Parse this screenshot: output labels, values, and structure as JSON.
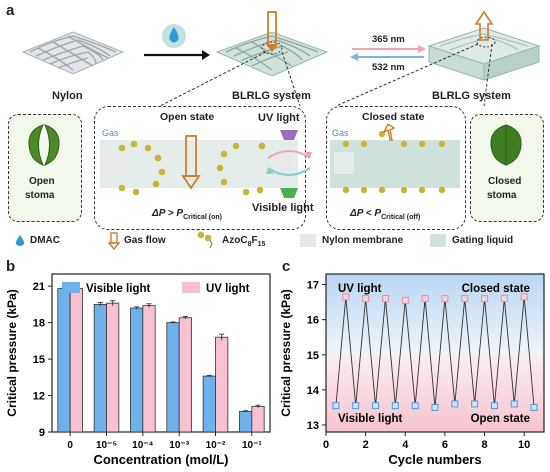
{
  "panel_a": {
    "letter": "a",
    "nylon_label": "Nylon",
    "blrlg1_label": "BLRLG system",
    "blrlg2_label": "BLRLG system",
    "wl_365": "365 nm",
    "wl_532": "532 nm",
    "open_state": "Open state",
    "closed_state": "Closed state",
    "gas_open": "Gas",
    "gas_closed": "Gas",
    "uv_light": "UV light",
    "visible_light": "Visible light",
    "open_stoma": [
      "Open",
      "stoma"
    ],
    "closed_stoma": [
      "Closed",
      "stoma"
    ],
    "dp_open": "ΔP > P",
    "dp_open_sub": "Critical (on)",
    "dp_closed": "ΔP < P",
    "dp_closed_sub": "Critical (off)",
    "legend": {
      "dmac": "DMAC",
      "gas_flow": "Gas flow",
      "azo": "AzoC",
      "azo_sub1": "8",
      "azo_mid": "F",
      "azo_sub2": "15",
      "nylon_membrane": "Nylon membrane",
      "gating_liquid": "Gating liquid"
    },
    "colors": {
      "mesh": "#cfd3d8",
      "gating": "#cfe3dc",
      "stoma": "#4f8a2a",
      "azo": "#c8b43a",
      "arrow_gas": "#d47a2a",
      "pink": "#f3a2b8",
      "blue": "#7fb3e6"
    }
  },
  "chart_data": [
    {
      "panel": "b",
      "type": "bar",
      "ylabel": "Critical pressure (kPa)",
      "xlabel": "Concentration (mol/L)",
      "categories": [
        "0",
        "10⁻⁵",
        "10⁻⁴",
        "10⁻³",
        "10⁻²",
        "10⁻¹"
      ],
      "ylim": [
        9,
        22
      ],
      "yticks": [
        9,
        12,
        15,
        18,
        21
      ],
      "series": [
        {
          "name": "Visible light",
          "color": "#6fb1ea",
          "values": [
            20.8,
            19.5,
            19.2,
            18.0,
            13.6,
            10.7
          ],
          "errors": [
            0.05,
            0.15,
            0.1,
            0.05,
            0.05,
            0.05
          ]
        },
        {
          "name": "UV light",
          "color": "#f7c1d2",
          "values": [
            20.8,
            19.6,
            19.4,
            18.4,
            16.8,
            11.1
          ],
          "errors": [
            0.05,
            0.2,
            0.15,
            0.1,
            0.25,
            0.1
          ]
        }
      ],
      "legend_position": "top"
    },
    {
      "panel": "c",
      "type": "line",
      "ylabel": "Critical pressure (kPa)",
      "xlabel": "Cycle numbers",
      "xlim": [
        0,
        11
      ],
      "ylim": [
        12.8,
        17.3
      ],
      "xticks": [
        0,
        2,
        4,
        6,
        8,
        10
      ],
      "yticks": [
        13,
        14,
        15,
        16,
        17
      ],
      "x": [
        0.5,
        1,
        1.5,
        2,
        2.5,
        3,
        3.5,
        4,
        4.5,
        5,
        5.5,
        6,
        6.5,
        7,
        7.5,
        8,
        8.5,
        9,
        9.5,
        10,
        10.5
      ],
      "y": [
        13.55,
        16.65,
        13.55,
        16.6,
        13.55,
        16.6,
        13.55,
        16.55,
        13.55,
        16.6,
        13.5,
        16.6,
        13.6,
        16.6,
        13.6,
        16.6,
        13.55,
        16.6,
        13.6,
        16.65,
        13.5
      ],
      "annotations": {
        "uv_light": "UV light",
        "closed_state": "Closed state",
        "visible_light": "Visible light",
        "open_state": "Open state"
      }
    }
  ],
  "panel_b_letter": "b",
  "panel_c_letter": "c"
}
